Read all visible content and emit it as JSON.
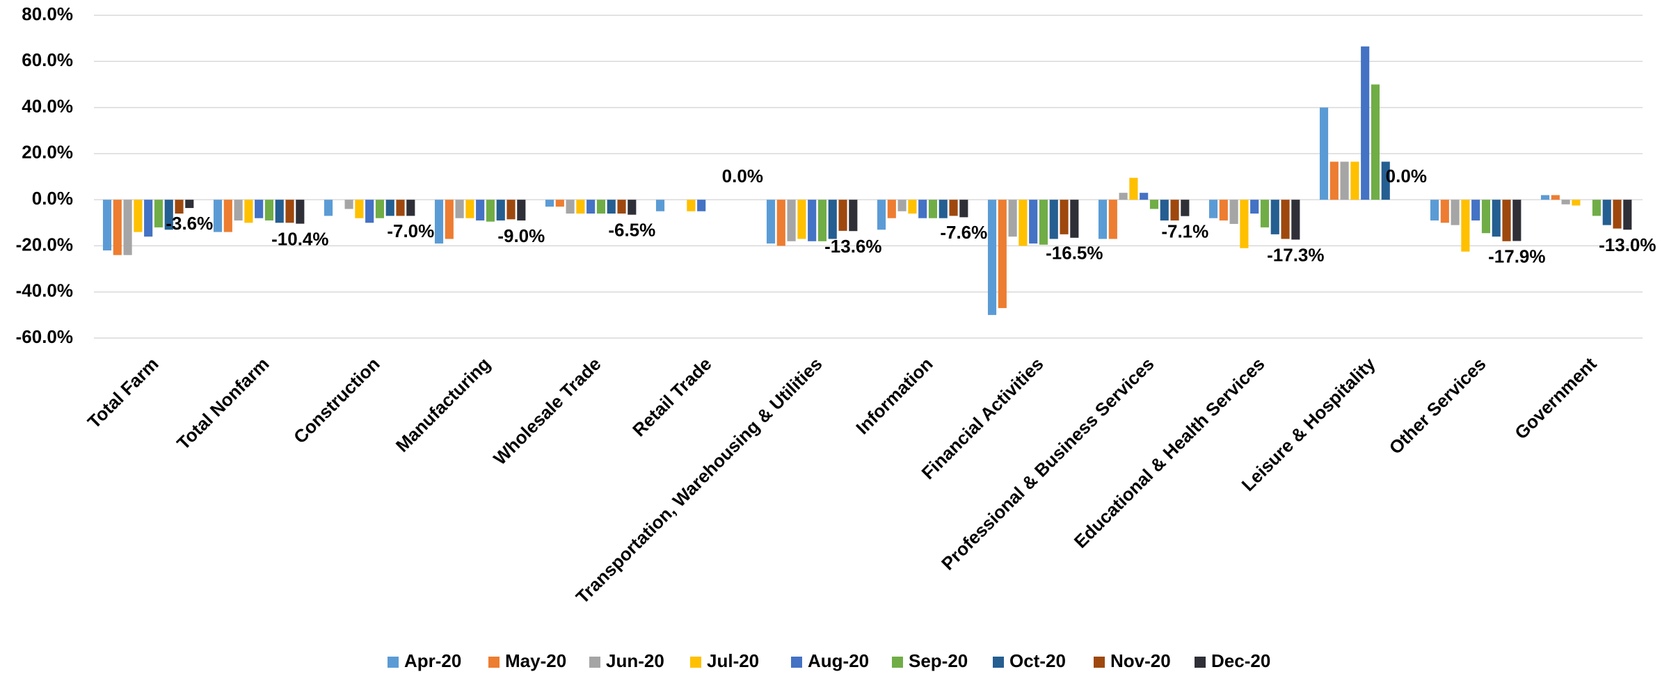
{
  "chart_data": {
    "type": "bar",
    "categories": [
      "Total Farm",
      "Total Nonfarm",
      "Construction",
      "Manufacturing",
      "Wholesale Trade",
      "Retail Trade",
      "Transportation, Warehousing & Utilities",
      "Information",
      "Financial Activities",
      "Professional & Business Services",
      "Educational & Health Services",
      "Leisure & Hospitality",
      "Other Services",
      "Government"
    ],
    "series": [
      {
        "name": "Apr-20",
        "color": "#5b9bd5",
        "values": [
          -22,
          -14,
          -7,
          -19,
          -3,
          -5,
          -19,
          -13,
          -50,
          -17,
          -8,
          40,
          -9,
          2
        ]
      },
      {
        "name": "May-20",
        "color": "#ed7d31",
        "values": [
          -24,
          -14,
          0,
          -17,
          -3,
          0,
          -20,
          -8,
          -47,
          -17,
          -9,
          16.5,
          -10,
          2
        ]
      },
      {
        "name": "Jun-20",
        "color": "#a5a5a5",
        "values": [
          -24,
          -9,
          -4,
          -8,
          -6,
          0,
          -18,
          -5,
          -16,
          3,
          -10.5,
          16.5,
          -11,
          -2
        ]
      },
      {
        "name": "Jul-20",
        "color": "#ffc000",
        "values": [
          -14,
          -10,
          -8,
          -8,
          -6,
          -5,
          -17,
          -6,
          -20,
          9.5,
          -21,
          16.5,
          -22.5,
          -2.5
        ]
      },
      {
        "name": "Aug-20",
        "color": "#4472c4",
        "values": [
          -16,
          -8,
          -10,
          -9,
          -6,
          -5,
          -18,
          -8,
          -19,
          3,
          -6,
          66.5,
          -9,
          0
        ]
      },
      {
        "name": "Sep-20",
        "color": "#70ad47",
        "values": [
          -12,
          -9,
          -8,
          -9.5,
          -6,
          0,
          -18,
          -8,
          -19.5,
          -4,
          -12,
          50,
          -14.5,
          -7
        ]
      },
      {
        "name": "Oct-20",
        "color": "#255e91",
        "values": [
          -13,
          -10,
          -7,
          -9,
          -6,
          0,
          -17,
          -8,
          -17,
          -9,
          -15,
          16.5,
          -16,
          -11
        ]
      },
      {
        "name": "Nov-20",
        "color": "#9e480e",
        "values": [
          -6,
          -10,
          -7,
          -8.5,
          -6,
          0,
          -13.5,
          -7,
          -15,
          -9,
          -17,
          0,
          -18,
          -12.5
        ]
      },
      {
        "name": "Dec-20",
        "color": "#2f2f38",
        "values": [
          -3.6,
          -10.4,
          -7.0,
          -9.0,
          -6.5,
          0.0,
          -13.6,
          -7.6,
          -16.5,
          -7.1,
          -17.3,
          0.0,
          -17.9,
          -13.0
        ],
        "value_labels": [
          "-3.6%",
          "-10.4%",
          "-7.0%",
          "-9.0%",
          "-6.5%",
          "0.0%",
          "-13.6%",
          "-7.6%",
          "-16.5%",
          "-7.1%",
          "-17.3%",
          "0.0%",
          "-17.9%",
          "-13.0%"
        ]
      }
    ],
    "ylim": [
      -60,
      80
    ],
    "yticks": [
      {
        "value": -60,
        "label": "-60.0%"
      },
      {
        "value": -40,
        "label": "-40.0%"
      },
      {
        "value": -20,
        "label": "-20.0%"
      },
      {
        "value": 0,
        "label": "0.0%"
      },
      {
        "value": 20,
        "label": "20.0%"
      },
      {
        "value": 40,
        "label": "40.0%"
      },
      {
        "value": 60,
        "label": "60.0%"
      },
      {
        "value": 80,
        "label": "80.0%"
      }
    ],
    "grid": true,
    "legend": "bottom"
  }
}
